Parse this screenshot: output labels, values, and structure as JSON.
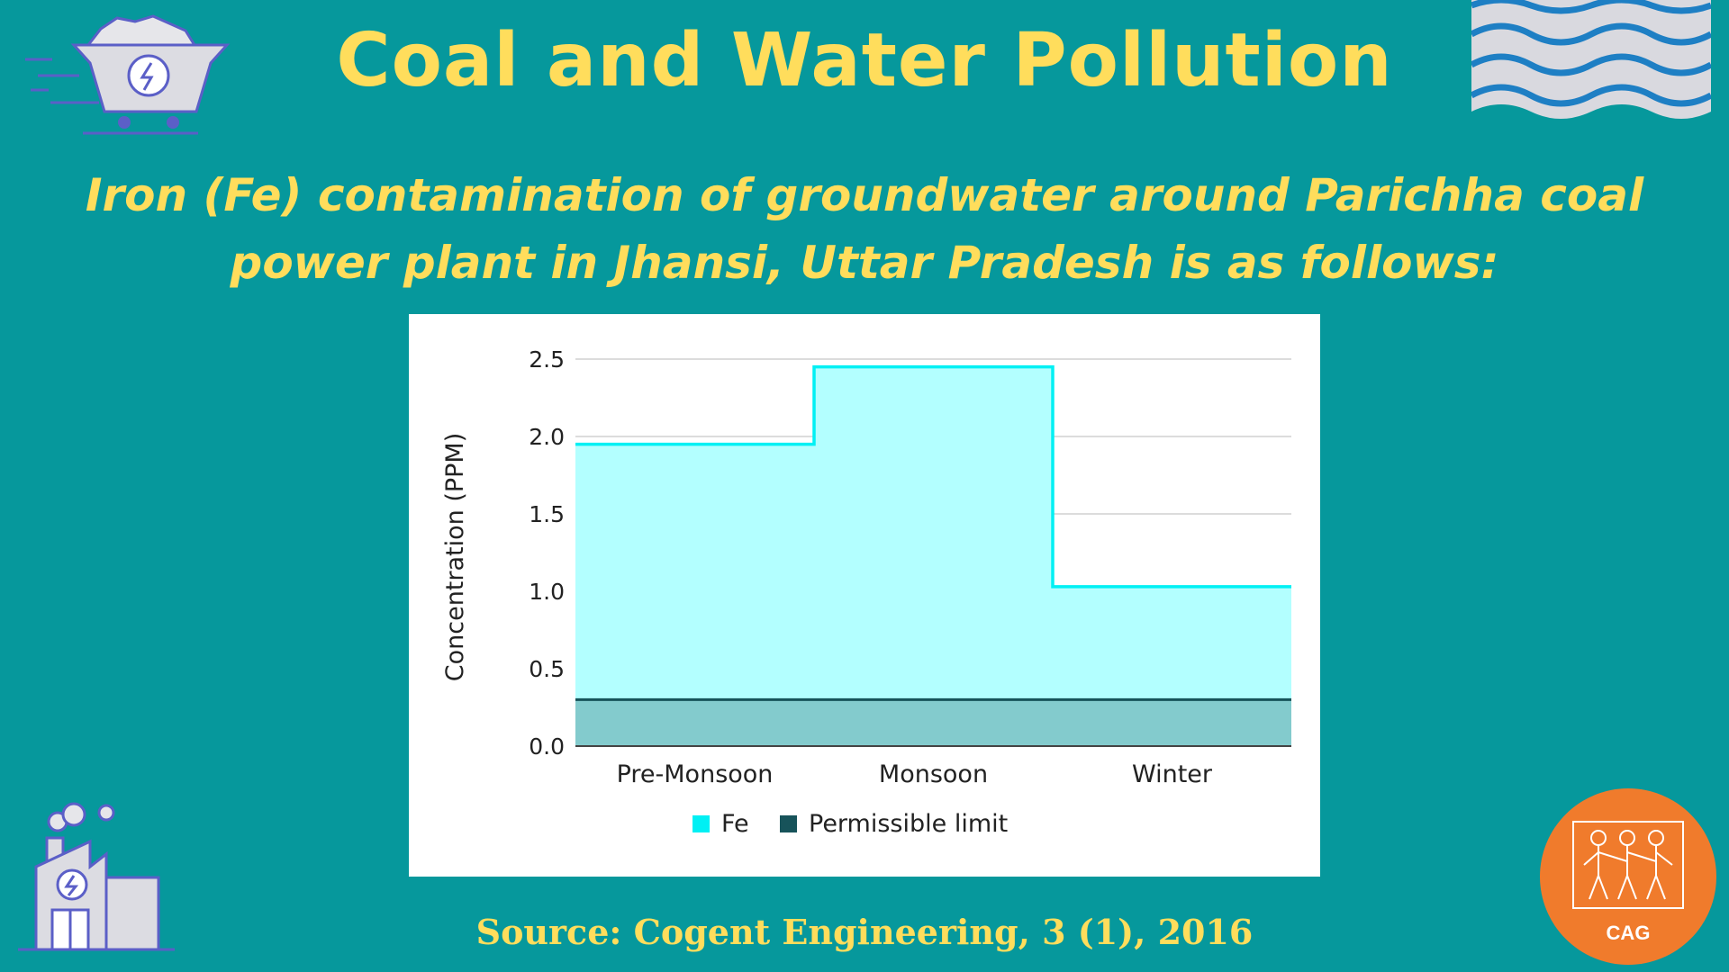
{
  "title": "Coal and Water Pollution",
  "subtitle": "Iron (Fe) contamination of groundwater around Parichha coal power plant in Jhansi, Uttar Pradesh is as follows:",
  "source": "Source: Cogent Engineering, 3 (1), 2016",
  "logo_text": "CAG",
  "colors": {
    "background": "#06989c",
    "heading": "#ffdd5c",
    "fe_line": "#00f0f4",
    "fe_fill": "#b3ffff",
    "limit_line": "#17535a",
    "limit_fill": "#83cbcd",
    "logo": "#f07b2c"
  },
  "icons": {
    "top_left": "coal-cart-icon",
    "top_right": "water-waves-icon",
    "bottom_left": "power-plant-icon",
    "bottom_right": "cag-logo"
  },
  "chart_data": {
    "type": "area",
    "categories": [
      "Pre-Monsoon",
      "Monsoon",
      "Winter"
    ],
    "series": [
      {
        "name": "Fe",
        "values": [
          1.95,
          2.45,
          1.03
        ],
        "color": "#00f0f4"
      },
      {
        "name": "Permissible limit",
        "values": [
          0.3,
          0.3,
          0.3
        ],
        "color": "#17535a"
      }
    ],
    "ylabel": "Concentration (PPM)",
    "xlabel": "",
    "ylim": [
      0,
      2.5
    ],
    "yticks": [
      "0.0",
      "0.5",
      "1.0",
      "1.5",
      "2.0",
      "2.5"
    ],
    "step": true,
    "grid": true,
    "legend_position": "bottom"
  }
}
